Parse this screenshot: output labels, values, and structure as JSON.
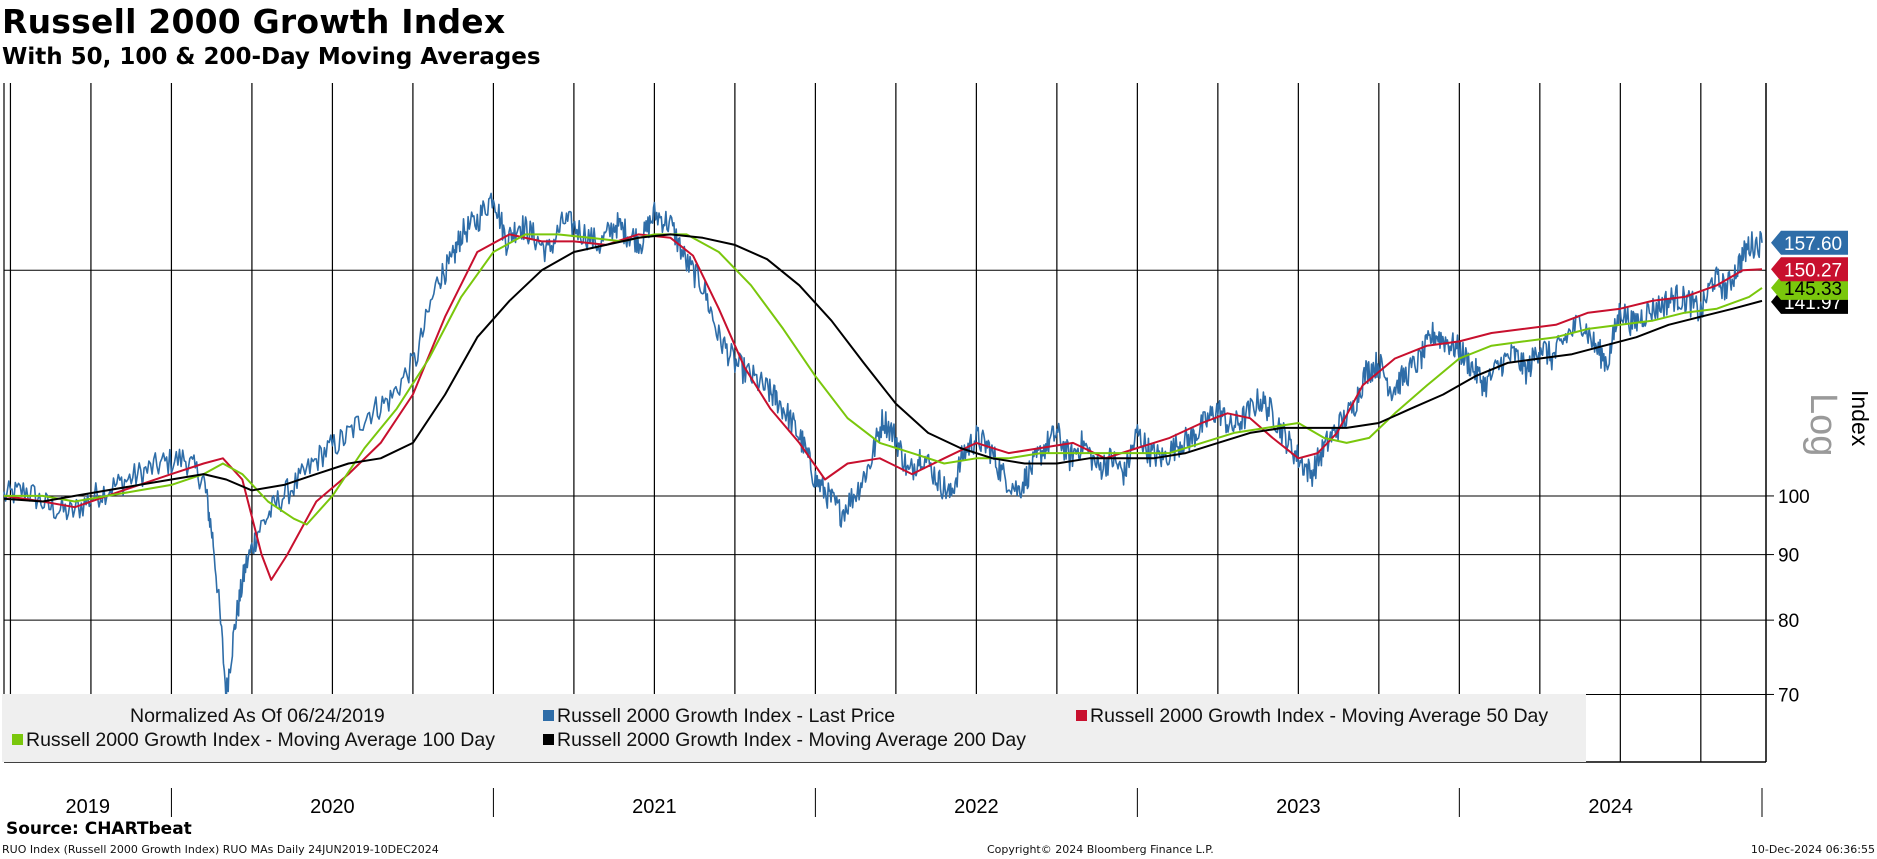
{
  "header": {
    "title": "Russell 2000 Growth Index",
    "subtitle": "With 50, 100 & 200-Day Moving Averages"
  },
  "footer": {
    "source": "Source: CHARTbeat",
    "left_note": "RUO Index (Russell 2000 Growth Index) RUO MAs  Daily 24JUN2019-10DEC2024",
    "center_note": "Copyright© 2024 Bloomberg Finance L.P.",
    "right_note": "10-Dec-2024 06:36:55"
  },
  "legend": {
    "normalized_note": "Normalized As Of 06/24/2019",
    "items": [
      {
        "label": "Russell 2000 Growth Index - Last Price",
        "color": "#2e6da8"
      },
      {
        "label": "Russell 2000 Growth Index - Moving Average 50 Day",
        "color": "#c8102e"
      },
      {
        "label": "Russell 2000 Growth Index - Moving Average 100 Day",
        "color": "#7ac70c"
      },
      {
        "label": "Russell 2000 Growth Index - Moving Average 200 Day",
        "color": "#000000"
      }
    ]
  },
  "chart_data": {
    "type": "line",
    "scale": "log",
    "ylabel": "Index",
    "scale_label": "Log",
    "ylim": [
      62,
      210
    ],
    "y_ticks": [
      70,
      80,
      90,
      100
    ],
    "x_range": [
      2019.48,
      2024.94
    ],
    "x_tick_labels": [
      "2019",
      "2020",
      "2021",
      "2022",
      "2023",
      "2024"
    ],
    "grid": true,
    "last_values": [
      {
        "label": "157.60",
        "value": 157.6,
        "color": "#2e6da8"
      },
      {
        "label": "150.27",
        "value": 150.27,
        "color": "#c8102e"
      },
      {
        "label": "145.33",
        "value": 145.33,
        "color": "#7ac70c"
      },
      {
        "label": "141.97",
        "value": 141.97,
        "color": "#000000"
      }
    ],
    "series": [
      {
        "name": "Russell 2000 Growth Index - Last Price",
        "color": "#2e6da8",
        "x": [
          2019.48,
          2019.55,
          2019.62,
          2019.69,
          2019.76,
          2019.83,
          2019.9,
          2019.97,
          2020.04,
          2020.1,
          2020.13,
          2020.17,
          2020.2,
          2020.23,
          2020.27,
          2020.33,
          2020.4,
          2020.47,
          2020.54,
          2020.61,
          2020.68,
          2020.76,
          2020.83,
          2020.87,
          2020.9,
          2020.95,
          2021.0,
          2021.04,
          2021.08,
          2021.12,
          2021.17,
          2021.22,
          2021.27,
          2021.33,
          2021.38,
          2021.42,
          2021.46,
          2021.5,
          2021.55,
          2021.6,
          2021.65,
          2021.7,
          2021.75,
          2021.8,
          2021.85,
          2021.88,
          2021.92,
          2021.96,
          2022.0,
          2022.04,
          2022.08,
          2022.13,
          2022.17,
          2022.21,
          2022.25,
          2022.29,
          2022.33,
          2022.38,
          2022.42,
          2022.46,
          2022.5,
          2022.54,
          2022.58,
          2022.63,
          2022.67,
          2022.71,
          2022.75,
          2022.79,
          2022.83,
          2022.88,
          2022.92,
          2022.96,
          2023.0,
          2023.04,
          2023.08,
          2023.13,
          2023.17,
          2023.21,
          2023.25,
          2023.29,
          2023.33,
          2023.38,
          2023.42,
          2023.46,
          2023.5,
          2023.54,
          2023.58,
          2023.62,
          2023.67,
          2023.71,
          2023.75,
          2023.79,
          2023.83,
          2023.88,
          2023.92,
          2023.96,
          2024.0,
          2024.04,
          2024.08,
          2024.13,
          2024.17,
          2024.21,
          2024.25,
          2024.29,
          2024.33,
          2024.38,
          2024.42,
          2024.46,
          2024.5,
          2024.54,
          2024.58,
          2024.63,
          2024.67,
          2024.71,
          2024.75,
          2024.79,
          2024.83,
          2024.87,
          2024.9,
          2024.94
        ],
        "values": [
          100,
          101,
          98,
          97,
          100,
          102,
          104,
          106,
          107,
          103,
          92,
          70,
          80,
          88,
          94,
          99,
          103,
          108,
          111,
          116,
          119,
          128,
          148,
          152,
          160,
          164,
          172,
          158,
          163,
          160,
          155,
          164,
          161,
          157,
          163,
          160,
          158,
          166,
          163,
          152,
          146,
          133,
          127,
          124,
          121,
          119,
          115,
          110,
          103,
          100,
          97,
          101,
          106,
          115,
          111,
          104,
          108,
          103,
          100,
          108,
          111,
          109,
          104,
          101,
          105,
          109,
          112,
          107,
          110,
          105,
          107,
          104,
          112,
          108,
          107,
          110,
          111,
          114,
          117,
          113,
          115,
          119,
          116,
          111,
          107,
          104,
          109,
          113,
          117,
          125,
          127,
          121,
          124,
          128,
          134,
          132,
          130,
          126,
          122,
          127,
          129,
          125,
          131,
          128,
          133,
          137,
          131,
          127,
          140,
          136,
          139,
          141,
          143,
          142,
          139,
          148,
          145,
          152,
          157,
          157.6
        ]
      },
      {
        "name": "Russell 2000 Growth Index - Moving Average 50 Day",
        "color": "#c8102e",
        "x": [
          2019.48,
          2019.6,
          2019.7,
          2019.8,
          2019.9,
          2020.0,
          2020.1,
          2020.16,
          2020.22,
          2020.28,
          2020.31,
          2020.36,
          2020.45,
          2020.55,
          2020.65,
          2020.75,
          2020.85,
          2020.95,
          2021.05,
          2021.15,
          2021.25,
          2021.35,
          2021.45,
          2021.55,
          2021.62,
          2021.7,
          2021.78,
          2021.86,
          2021.95,
          2022.03,
          2022.1,
          2022.2,
          2022.3,
          2022.4,
          2022.5,
          2022.6,
          2022.7,
          2022.8,
          2022.9,
          2023.0,
          2023.1,
          2023.2,
          2023.28,
          2023.35,
          2023.42,
          2023.5,
          2023.56,
          2023.62,
          2023.7,
          2023.8,
          2023.9,
          2024.0,
          2024.1,
          2024.2,
          2024.3,
          2024.4,
          2024.5,
          2024.6,
          2024.7,
          2024.8,
          2024.88,
          2024.94
        ],
        "values": [
          100,
          99,
          98,
          100,
          102,
          104,
          106,
          107,
          103,
          90,
          86,
          90,
          99,
          104,
          110,
          120,
          138,
          155,
          160,
          158,
          158,
          157,
          160,
          159,
          154,
          140,
          126,
          117,
          110,
          103,
          106,
          107,
          104,
          107,
          110,
          108,
          109,
          110,
          107,
          109,
          111,
          114,
          116,
          115,
          111,
          107,
          108,
          112,
          122,
          128,
          131,
          132,
          134,
          135,
          136,
          139,
          140,
          142,
          143,
          146,
          150,
          150.27
        ]
      },
      {
        "name": "Russell 2000 Growth Index - Moving Average 100 Day",
        "color": "#7ac70c",
        "x": [
          2019.48,
          2019.6,
          2019.7,
          2019.8,
          2019.9,
          2020.0,
          2020.1,
          2020.16,
          2020.22,
          2020.3,
          2020.38,
          2020.42,
          2020.5,
          2020.6,
          2020.7,
          2020.8,
          2020.9,
          2021.0,
          2021.1,
          2021.2,
          2021.3,
          2021.4,
          2021.5,
          2021.6,
          2021.7,
          2021.8,
          2021.9,
          2022.0,
          2022.1,
          2022.2,
          2022.3,
          2022.4,
          2022.5,
          2022.6,
          2022.7,
          2022.8,
          2022.9,
          2023.0,
          2023.1,
          2023.2,
          2023.3,
          2023.4,
          2023.5,
          2023.58,
          2023.65,
          2023.72,
          2023.8,
          2023.9,
          2024.0,
          2024.1,
          2024.2,
          2024.3,
          2024.4,
          2024.5,
          2024.6,
          2024.7,
          2024.8,
          2024.9,
          2024.94
        ],
        "values": [
          100,
          100,
          99,
          100,
          101,
          102,
          104,
          106,
          104,
          99,
          96,
          95,
          100,
          109,
          117,
          128,
          143,
          155,
          160,
          160,
          159,
          158,
          160,
          160,
          155,
          146,
          135,
          124,
          115,
          110,
          108,
          106,
          107,
          107,
          108,
          108,
          108,
          108,
          108,
          110,
          112,
          113,
          114,
          111,
          110,
          111,
          116,
          122,
          128,
          131,
          132,
          133,
          135,
          136,
          137,
          139,
          140,
          143,
          145.33
        ]
      },
      {
        "name": "Russell 2000 Growth Index - Moving Average 200 Day",
        "color": "#000000",
        "x": [
          2019.48,
          2019.6,
          2019.7,
          2019.8,
          2019.9,
          2020.0,
          2020.1,
          2020.17,
          2020.25,
          2020.35,
          2020.45,
          2020.55,
          2020.65,
          2020.75,
          2020.85,
          2020.95,
          2021.05,
          2021.15,
          2021.25,
          2021.35,
          2021.45,
          2021.55,
          2021.65,
          2021.75,
          2021.85,
          2021.95,
          2022.05,
          2022.15,
          2022.25,
          2022.35,
          2022.45,
          2022.55,
          2022.65,
          2022.75,
          2022.85,
          2022.95,
          2023.05,
          2023.15,
          2023.25,
          2023.35,
          2023.45,
          2023.55,
          2023.65,
          2023.75,
          2023.85,
          2023.95,
          2024.05,
          2024.15,
          2024.25,
          2024.35,
          2024.45,
          2024.55,
          2024.65,
          2024.75,
          2024.85,
          2024.94
        ],
        "values": [
          99.5,
          99,
          100,
          101,
          102,
          103,
          104,
          103,
          101,
          102,
          104,
          106,
          107,
          110,
          120,
          133,
          142,
          150,
          155,
          157,
          159,
          160,
          159,
          157,
          153,
          146,
          137,
          127,
          118,
          112,
          109,
          107,
          106,
          106,
          107,
          107,
          107,
          108,
          110,
          112,
          113,
          113,
          113,
          114,
          117,
          120,
          124,
          127,
          128,
          129,
          131,
          133,
          136,
          138,
          140,
          141.97
        ]
      }
    ]
  }
}
